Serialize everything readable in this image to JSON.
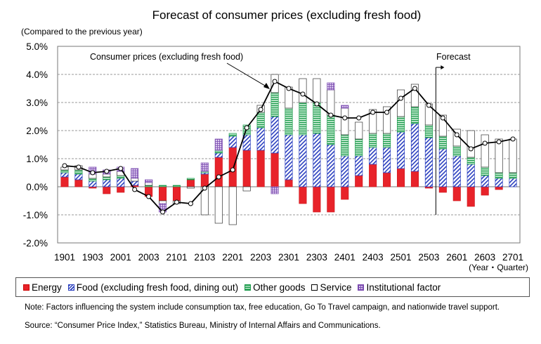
{
  "chart_data": {
    "type": "bar",
    "title": "Forecast of consumer prices (excluding fresh food)",
    "subtitle": "(Compared to the previous year)",
    "xlabel": "(Year・Quarter)",
    "ylim": [
      -2.0,
      5.0
    ],
    "yticks": [
      "5.0%",
      "4.0%",
      "3.0%",
      "2.0%",
      "1.0%",
      "0.0%",
      "-1.0%",
      "-2.0%"
    ],
    "ytick_values": [
      5,
      4,
      3,
      2,
      1,
      0,
      -1,
      -2
    ],
    "x_tick_labels": [
      "1901",
      "1903",
      "2001",
      "2003",
      "2101",
      "2103",
      "2201",
      "2203",
      "2301",
      "2303",
      "2401",
      "2403",
      "2501",
      "2503",
      "2601",
      "2603",
      "2701"
    ],
    "grid": true,
    "categories": [
      "1901",
      "1902",
      "1903",
      "1904",
      "2001",
      "2002",
      "2003",
      "2004",
      "2101",
      "2102",
      "2103",
      "2104",
      "2201",
      "2202",
      "2203",
      "2204",
      "2301",
      "2302",
      "2303",
      "2304",
      "2401",
      "2402",
      "2403",
      "2404",
      "2501",
      "2502",
      "2503",
      "2504",
      "2601",
      "2602",
      "2603",
      "2604",
      "2701"
    ],
    "series": [
      {
        "name": "Energy",
        "key": "energy",
        "values": [
          0.35,
          0.25,
          -0.05,
          -0.25,
          -0.2,
          0.05,
          -0.35,
          -0.5,
          -0.5,
          0.25,
          0.45,
          1.05,
          1.4,
          1.3,
          1.3,
          1.2,
          0.25,
          -0.6,
          -0.9,
          -0.9,
          -0.45,
          0.4,
          0.8,
          0.5,
          0.65,
          0.55,
          -0.05,
          -0.2,
          -0.5,
          -0.7,
          -0.3,
          -0.1,
          0.0
        ]
      },
      {
        "name": "Food (excluding fresh food, dining out)",
        "key": "food",
        "values": [
          0.15,
          0.2,
          0.2,
          0.25,
          0.3,
          0.15,
          0.0,
          0.0,
          0.0,
          0.0,
          0.05,
          0.15,
          0.4,
          0.55,
          0.8,
          1.3,
          1.6,
          1.85,
          1.9,
          1.5,
          1.1,
          0.7,
          0.6,
          0.9,
          1.3,
          1.7,
          1.75,
          1.35,
          1.1,
          0.8,
          0.4,
          0.3,
          0.3
        ]
      },
      {
        "name": "Other goods",
        "key": "other",
        "values": [
          0.1,
          0.15,
          0.1,
          0.1,
          0.1,
          0.0,
          0.05,
          0.05,
          0.05,
          0.05,
          0.05,
          0.1,
          0.1,
          0.35,
          0.55,
          0.85,
          0.95,
          1.15,
          1.1,
          1.05,
          0.75,
          0.6,
          0.5,
          0.5,
          0.55,
          0.6,
          0.45,
          0.45,
          0.35,
          0.25,
          0.3,
          0.2,
          0.2
        ]
      },
      {
        "name": "Service",
        "key": "service",
        "values": [
          0.1,
          0.15,
          0.15,
          0.1,
          0.15,
          0.1,
          0.1,
          -0.1,
          -0.1,
          -0.05,
          -1.0,
          -1.3,
          -1.35,
          -0.15,
          0.25,
          0.65,
          0.75,
          0.85,
          0.85,
          0.9,
          0.95,
          0.6,
          0.85,
          0.95,
          0.95,
          0.8,
          0.75,
          0.75,
          0.6,
          0.95,
          1.15,
          1.2,
          1.2
        ]
      },
      {
        "name": "Institutional factor",
        "key": "inst",
        "values": [
          0.0,
          0.0,
          0.25,
          0.15,
          0.15,
          0.35,
          0.1,
          -0.3,
          0.0,
          0.0,
          0.3,
          0.4,
          0.0,
          0.0,
          0.0,
          -0.25,
          0.0,
          0.0,
          0.0,
          0.25,
          0.1,
          0.0,
          0.0,
          0.0,
          0.0,
          0.0,
          0.0,
          0.0,
          0.0,
          0.0,
          0.0,
          0.0,
          0.0
        ]
      }
    ],
    "line": {
      "name": "Consumer prices (excluding fresh food)",
      "values": [
        0.75,
        0.7,
        0.5,
        0.55,
        0.65,
        -0.1,
        -0.35,
        -0.9,
        -0.55,
        -0.6,
        -0.05,
        0.35,
        0.6,
        2.1,
        2.75,
        3.75,
        3.5,
        3.3,
        2.95,
        2.55,
        2.45,
        2.45,
        2.65,
        2.65,
        3.15,
        3.5,
        2.9,
        2.45,
        1.85,
        1.35,
        1.55,
        1.6,
        1.7
      ]
    },
    "forecast_start": "2503",
    "annotations": {
      "line_label": "Consumer prices (excluding fresh food)",
      "forecast_label": "Forecast"
    },
    "legend": {
      "position": "bottom"
    }
  },
  "legend": {
    "energy": "Energy",
    "food": "Food (excluding fresh food, dining out)",
    "other": "Other goods",
    "service": "Service",
    "inst": "Institutional factor"
  },
  "notes": {
    "note1": "Note: Factors influencing the system include consumption tax, free education, Go To Travel campaign, and nationwide travel support.",
    "source": "Source: “Consumer Price Index,” Statistics Bureau, Ministry of Internal Affairs and Communications."
  },
  "colors": {
    "energy": "#e8232a",
    "food": "#2a3fbf",
    "other": "#1a9a4a",
    "service": "#ffffff",
    "inst": "#7b4bb0",
    "line": "#000000"
  }
}
